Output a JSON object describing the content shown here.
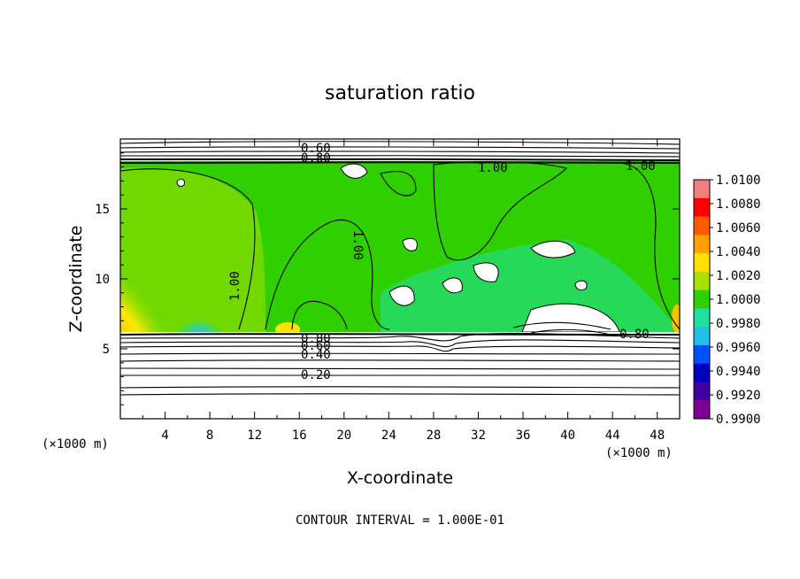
{
  "chart_data": {
    "type": "heatmap",
    "title": "saturation ratio",
    "xlabel": "X-coordinate",
    "ylabel": "Z-coordinate",
    "x_unit_left": "(×1000 m)",
    "x_unit_right": "(×1000 m)",
    "xlim": [
      0,
      50
    ],
    "ylim": [
      0,
      20
    ],
    "x_ticks": [
      "4",
      "8",
      "12",
      "16",
      "20",
      "24",
      "28",
      "32",
      "36",
      "40",
      "44",
      "48"
    ],
    "y_ticks": [
      "5",
      "10",
      "15"
    ],
    "footer": "CONTOUR INTERVAL = 1.000E-01",
    "colorbar": {
      "labels": [
        "1.0100",
        "1.0080",
        "1.0060",
        "1.0040",
        "1.0020",
        "1.0000",
        "0.9980",
        "0.9960",
        "0.9940",
        "0.9920",
        "0.9900"
      ],
      "colors": [
        "#f08080",
        "#ff0000",
        "#ff5a00",
        "#ffa000",
        "#ffe000",
        "#a8e000",
        "#30d000",
        "#20e0a0",
        "#20c0e8",
        "#0050ff",
        "#0000c0",
        "#4000a0",
        "#800090"
      ]
    },
    "contour_labels": [
      "0.60",
      "0.80",
      "1.00",
      "1.00",
      "1.00",
      "1.00",
      "0.80",
      "0.60",
      "0.40",
      "0.20",
      "0.80"
    ]
  }
}
